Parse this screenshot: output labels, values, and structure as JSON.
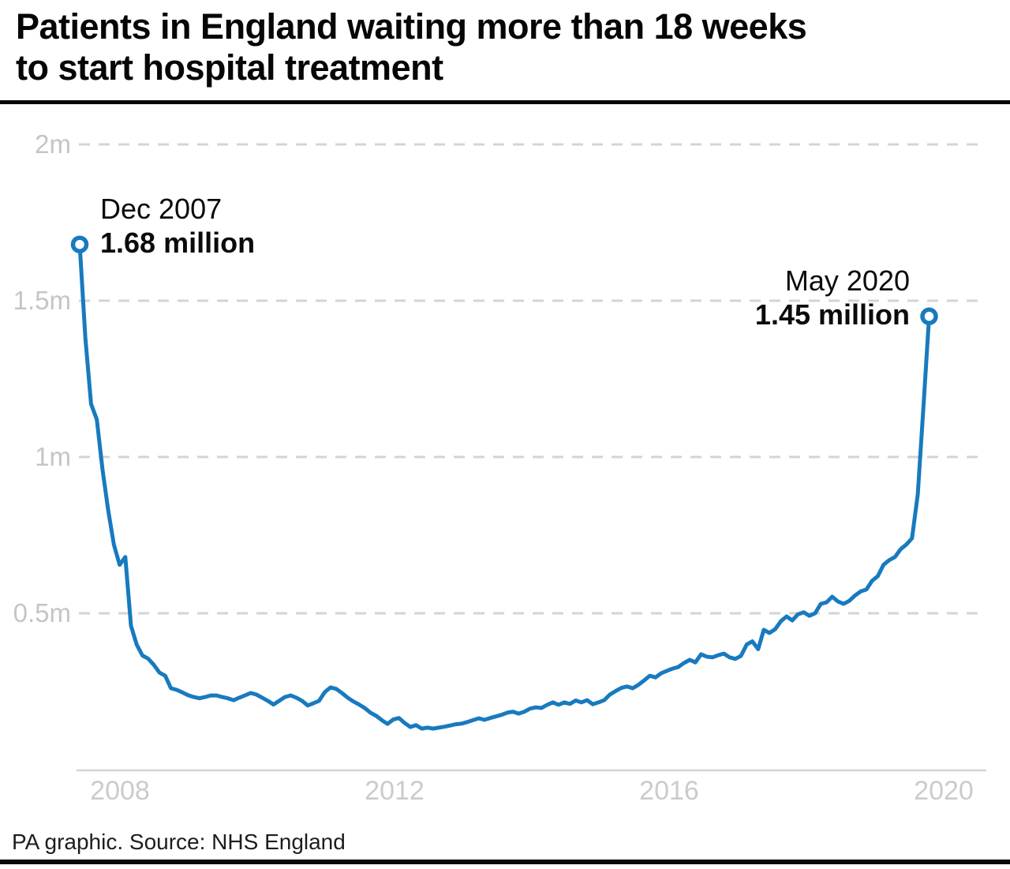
{
  "header": {
    "title_line1": "Patients in England waiting more than 18 weeks",
    "title_line2": "to start hospital treatment"
  },
  "footer": {
    "credit": "PA graphic. Source: NHS England"
  },
  "chart_data": {
    "type": "line",
    "title": "Patients in England waiting more than 18 weeks to start hospital treatment",
    "unit": "millions of patients",
    "x_start": "Dec 2007",
    "x_end": "May 2020",
    "x_interval": "monthly",
    "grid": "horizontal dashed",
    "legend": "none",
    "line_color": "#187abf",
    "ylim": [
      0,
      2.1
    ],
    "yticks": [
      {
        "label": "2m",
        "value": 2
      },
      {
        "label": "1.5m",
        "value": 1.5
      },
      {
        "label": "1m",
        "value": 1
      },
      {
        "label": "0.5m",
        "value": 0.5
      }
    ],
    "xticks": [
      {
        "label": "2008"
      },
      {
        "label": "2012"
      },
      {
        "label": "2016"
      },
      {
        "label": "2020"
      }
    ],
    "annotations": [
      {
        "date": "Dec 2007",
        "value_label": "1.68 million",
        "value": 1.68,
        "month_index": 0
      },
      {
        "date": "May 2020",
        "value_label": "1.45 million",
        "value": 1.45,
        "month_index": 149
      }
    ],
    "series": [
      {
        "name": "Patients waiting more than 18 weeks to start hospital treatment",
        "values": [
          1.68,
          1.38,
          1.17,
          1.12,
          0.96,
          0.83,
          0.72,
          0.655,
          0.68,
          0.46,
          0.4,
          0.365,
          0.355,
          0.335,
          0.31,
          0.3,
          0.26,
          0.255,
          0.247,
          0.238,
          0.232,
          0.228,
          0.232,
          0.237,
          0.237,
          0.232,
          0.228,
          0.222,
          0.23,
          0.237,
          0.245,
          0.24,
          0.23,
          0.22,
          0.208,
          0.22,
          0.232,
          0.237,
          0.23,
          0.22,
          0.205,
          0.212,
          0.22,
          0.248,
          0.263,
          0.258,
          0.245,
          0.23,
          0.218,
          0.208,
          0.197,
          0.182,
          0.172,
          0.158,
          0.146,
          0.16,
          0.165,
          0.149,
          0.136,
          0.142,
          0.131,
          0.134,
          0.131,
          0.134,
          0.137,
          0.141,
          0.145,
          0.147,
          0.152,
          0.158,
          0.164,
          0.159,
          0.165,
          0.17,
          0.175,
          0.182,
          0.185,
          0.179,
          0.185,
          0.195,
          0.199,
          0.197,
          0.207,
          0.215,
          0.207,
          0.215,
          0.21,
          0.221,
          0.215,
          0.222,
          0.209,
          0.215,
          0.222,
          0.24,
          0.251,
          0.261,
          0.266,
          0.26,
          0.271,
          0.285,
          0.3,
          0.295,
          0.308,
          0.316,
          0.323,
          0.328,
          0.341,
          0.351,
          0.343,
          0.369,
          0.361,
          0.359,
          0.366,
          0.371,
          0.359,
          0.354,
          0.364,
          0.4,
          0.41,
          0.385,
          0.447,
          0.437,
          0.449,
          0.475,
          0.49,
          0.477,
          0.497,
          0.503,
          0.492,
          0.5,
          0.53,
          0.535,
          0.553,
          0.538,
          0.53,
          0.54,
          0.557,
          0.57,
          0.576,
          0.604,
          0.619,
          0.655,
          0.67,
          0.68,
          0.705,
          0.72,
          0.74,
          0.88,
          1.16,
          1.45
        ]
      }
    ]
  }
}
